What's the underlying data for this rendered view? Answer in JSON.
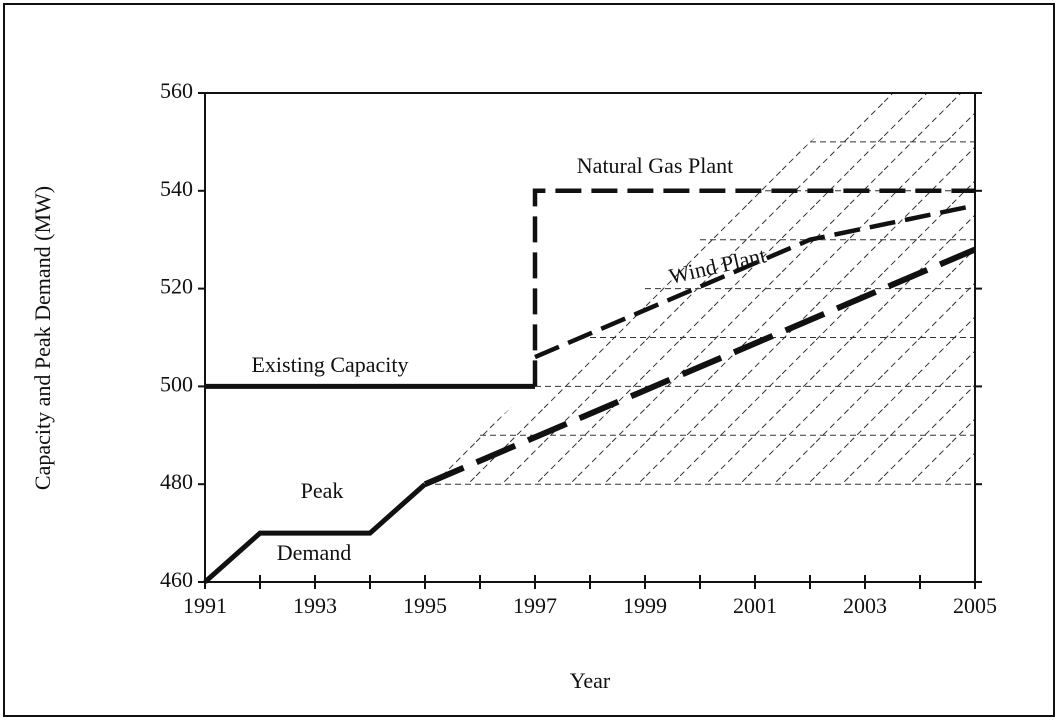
{
  "chart_data": {
    "type": "line",
    "xlabel": "Year",
    "ylabel": "Capacity and Peak Demand (MW)",
    "xlim": [
      1991,
      2005
    ],
    "xticks": [
      1991,
      1993,
      1995,
      1997,
      1999,
      2001,
      2003,
      2005
    ],
    "xminorticks": [
      1992,
      1994,
      1996,
      1998,
      2000,
      2002,
      2004
    ],
    "ylim": [
      460,
      560
    ],
    "yticks": [
      460,
      480,
      500,
      520,
      540,
      560
    ],
    "annotations": [
      "Natural Gas Plant",
      "Wind Plant",
      "Existing Capacity",
      "Peak",
      "Demand"
    ],
    "area": {
      "x": [
        1995,
        2003,
        2005
      ],
      "upper": [
        480,
        560,
        560
      ],
      "lower": 480,
      "hatch": true,
      "levels": [
        480,
        490,
        500,
        510,
        520,
        530,
        540,
        550
      ]
    },
    "series": [
      {
        "color": "#111",
        "style": "solid",
        "x": [
          1991,
          1997
        ],
        "values": [
          500,
          500
        ]
      },
      {
        "color": "#111",
        "style": "dashed",
        "x": [
          1997,
          1997,
          2005
        ],
        "values": [
          500,
          540,
          540
        ]
      },
      {
        "color": "#111",
        "style": "dashed",
        "x": [
          1997,
          2002,
          2005
        ],
        "values": [
          506,
          530,
          537
        ]
      },
      {
        "color": "#111",
        "style": "solid",
        "x": [
          1991,
          1992,
          1994,
          1995
        ],
        "values": [
          460,
          470,
          470,
          480
        ]
      },
      {
        "color": "#111",
        "style": "longdash",
        "x": [
          1995,
          2005
        ],
        "values": [
          480,
          528
        ]
      }
    ]
  }
}
